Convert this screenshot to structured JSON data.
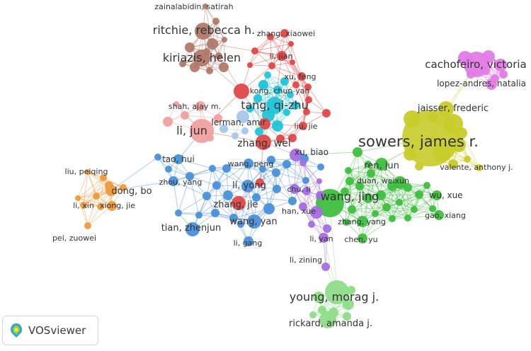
{
  "app": {
    "name": "VOSviewer",
    "logo_icon": "vosviewer-logo-icon"
  },
  "network": {
    "clusters": {
      "brown": "#b07a6a",
      "red": "#e04848",
      "salmon": "#f0a0a0",
      "cyan": "#22c4d8",
      "blue": "#4a90d9",
      "lightblue": "#a7c7e8",
      "orange": "#f09a3c",
      "purple": "#a46ee0",
      "green": "#3fbf3f",
      "lightgreen": "#8fdc8a",
      "yellow": "#c8cc2a",
      "magenta": "#e27ce6"
    },
    "labels": [
      {
        "text": "zainalabidin, satirah",
        "cluster": "brown"
      },
      {
        "text": "ritchie, rebecca h.",
        "cluster": "brown"
      },
      {
        "text": "kiriazis, helen",
        "cluster": "brown"
      },
      {
        "text": "zhang, xiaowei",
        "cluster": "red"
      },
      {
        "text": "li, jian",
        "cluster": "red"
      },
      {
        "text": "xu, feng",
        "cluster": "red"
      },
      {
        "text": "kong, chun-yan",
        "cluster": "cyan"
      },
      {
        "text": "tang, qi-zhu",
        "cluster": "cyan"
      },
      {
        "text": "shah, ajay m.",
        "cluster": "salmon"
      },
      {
        "text": "lerman, amir",
        "cluster": "lightblue"
      },
      {
        "text": "liu, jie",
        "cluster": "red"
      },
      {
        "text": "li, jun",
        "cluster": "salmon"
      },
      {
        "text": "zhang, wei",
        "cluster": "red"
      },
      {
        "text": "xu, biao",
        "cluster": "purple"
      },
      {
        "text": "tao, hui",
        "cluster": "blue"
      },
      {
        "text": "wang, peng",
        "cluster": "blue"
      },
      {
        "text": "liu, peiqing",
        "cluster": "orange"
      },
      {
        "text": "zhou, yang",
        "cluster": "blue"
      },
      {
        "text": "dong, bo",
        "cluster": "orange"
      },
      {
        "text": "li, yong",
        "cluster": "blue"
      },
      {
        "text": "chu, li",
        "cluster": "purple"
      },
      {
        "text": "li, xin",
        "cluster": "orange"
      },
      {
        "text": "xiong, jie",
        "cluster": "orange"
      },
      {
        "text": "zhang, jie",
        "cluster": "red"
      },
      {
        "text": "han, xue",
        "cluster": "purple"
      },
      {
        "text": "wang, yan",
        "cluster": "blue"
      },
      {
        "text": "tian, zhenjun",
        "cluster": "blue"
      },
      {
        "text": "pei, zuowei",
        "cluster": "orange"
      },
      {
        "text": "li, gang",
        "cluster": "blue"
      },
      {
        "text": "li, yan",
        "cluster": "purple"
      },
      {
        "text": "li, zining",
        "cluster": "purple"
      },
      {
        "text": "young, morag j.",
        "cluster": "lightgreen"
      },
      {
        "text": "rickard, amanda j.",
        "cluster": "lightgreen"
      },
      {
        "text": "ren, jun",
        "cluster": "green"
      },
      {
        "text": "duan, weixun",
        "cluster": "green"
      },
      {
        "text": "wang, jing",
        "cluster": "green"
      },
      {
        "text": "zhang, yang",
        "cluster": "green"
      },
      {
        "text": "chen, yu",
        "cluster": "green"
      },
      {
        "text": "wu, xue",
        "cluster": "green"
      },
      {
        "text": "gao, xiang",
        "cluster": "green"
      },
      {
        "text": "sowers, james r.",
        "cluster": "yellow"
      },
      {
        "text": "jaisser, frederic",
        "cluster": "yellow"
      },
      {
        "text": "valente, anthony j.",
        "cluster": "yellow"
      },
      {
        "text": "cachofeiro, victoria",
        "cluster": "magenta"
      },
      {
        "text": "lopez-andres, natalia",
        "cluster": "magenta"
      }
    ]
  }
}
